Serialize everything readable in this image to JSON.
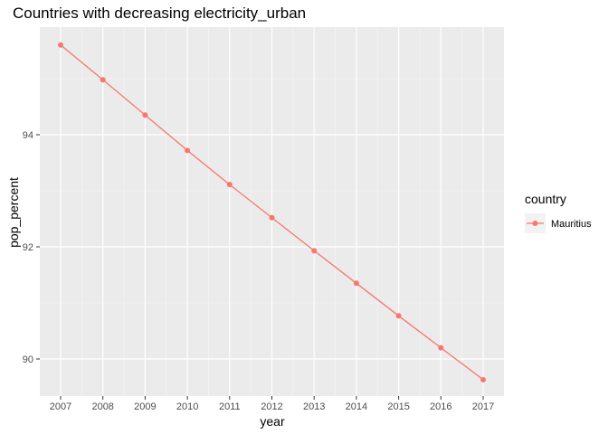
{
  "chart_data": {
    "type": "line",
    "title": "Countries with decreasing electricity_urban",
    "xlabel": "year",
    "ylabel": "pop_percent",
    "x": [
      2007,
      2008,
      2009,
      2010,
      2011,
      2012,
      2013,
      2014,
      2015,
      2016,
      2017
    ],
    "x_tick_labels": [
      "2007",
      "2008",
      "2009",
      "2010",
      "2011",
      "2012",
      "2013",
      "2014",
      "2015",
      "2016",
      "2017"
    ],
    "y_ticks": [
      90,
      92,
      94
    ],
    "y_tick_labels": [
      "90",
      "92",
      "94"
    ],
    "ylim": [
      89.6,
      95.6
    ],
    "grid": true,
    "legend": {
      "title": "country",
      "placement": "right"
    },
    "series": [
      {
        "name": "Mauritius",
        "color": "#F8766D",
        "values": [
          95.6,
          94.98,
          94.35,
          93.72,
          93.11,
          92.52,
          91.93,
          91.35,
          90.77,
          90.2,
          89.63
        ]
      }
    ]
  }
}
